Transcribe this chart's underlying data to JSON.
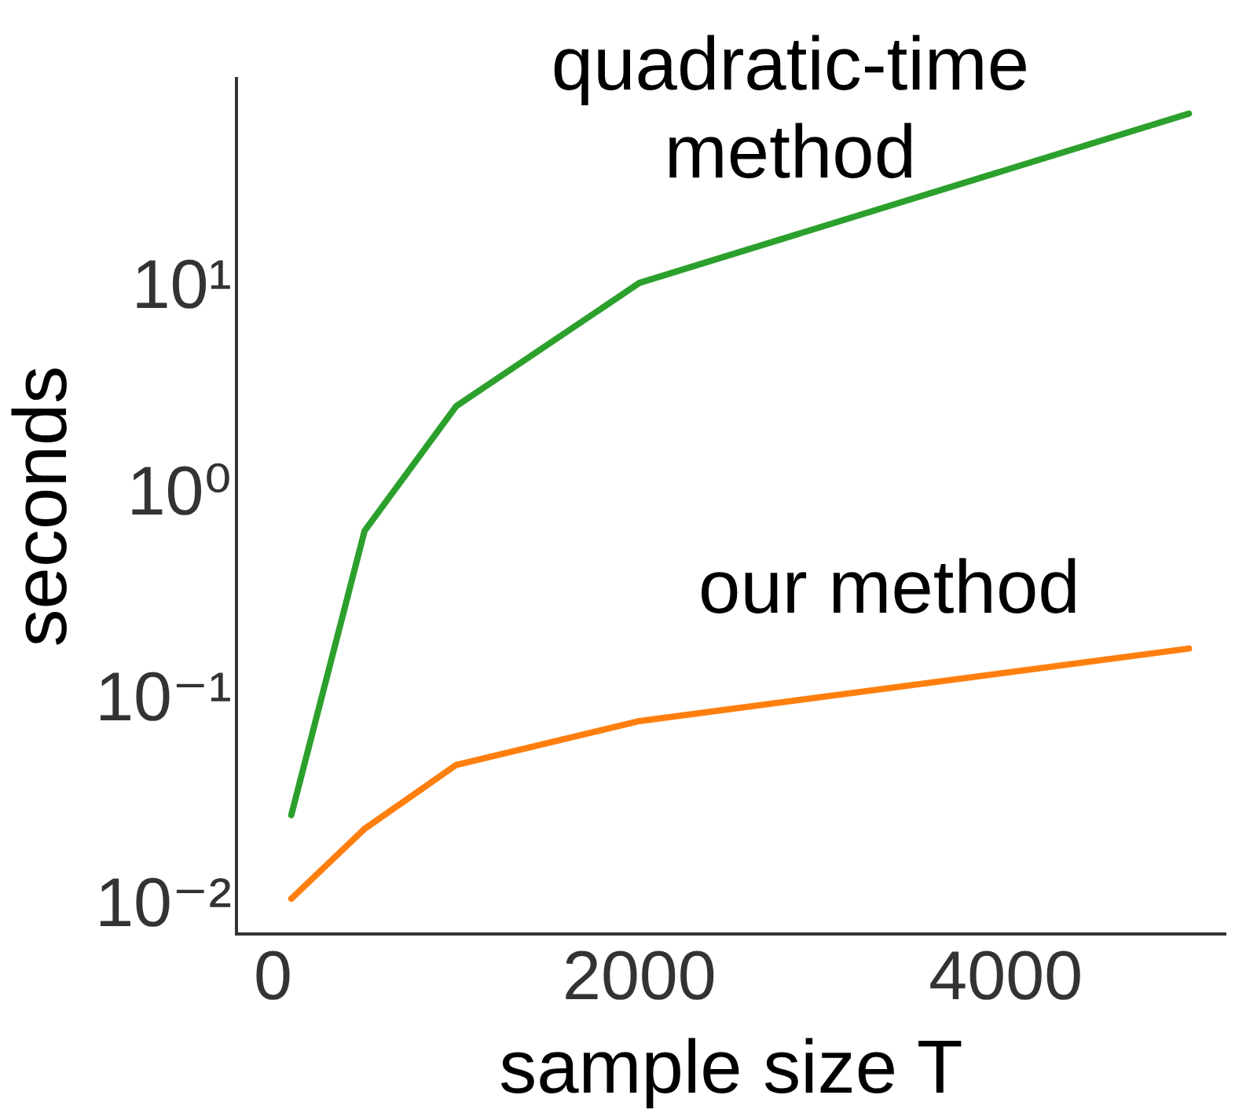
{
  "chart_data": {
    "type": "line",
    "xlabel": "sample size T",
    "ylabel": "seconds",
    "x": [
      100,
      500,
      1000,
      2000,
      5000
    ],
    "series": [
      {
        "color": "#2ca02c",
        "values": [
          0.028,
          0.67,
          2.7,
          10.7,
          71
        ]
      },
      {
        "color": "#ff7f0e",
        "values": [
          0.011,
          0.024,
          0.049,
          0.08,
          0.18
        ]
      }
    ],
    "annotations": [
      "quadratic-time method",
      "our method"
    ],
    "log": "y",
    "grid": false,
    "legend": false,
    "marker": "none",
    "line_style": "solid",
    "xlim": [
      -200,
      5200
    ],
    "xticks": [
      0,
      2000,
      4000
    ],
    "ylim": [
      0.0074,
      105
    ],
    "yticks": [
      {
        "value": 0.01,
        "label": "10⁻²"
      },
      {
        "value": 0.1,
        "label": "10⁻¹"
      },
      {
        "value": 1,
        "label": "10⁰"
      },
      {
        "value": 10,
        "label": "10¹"
      }
    ]
  }
}
